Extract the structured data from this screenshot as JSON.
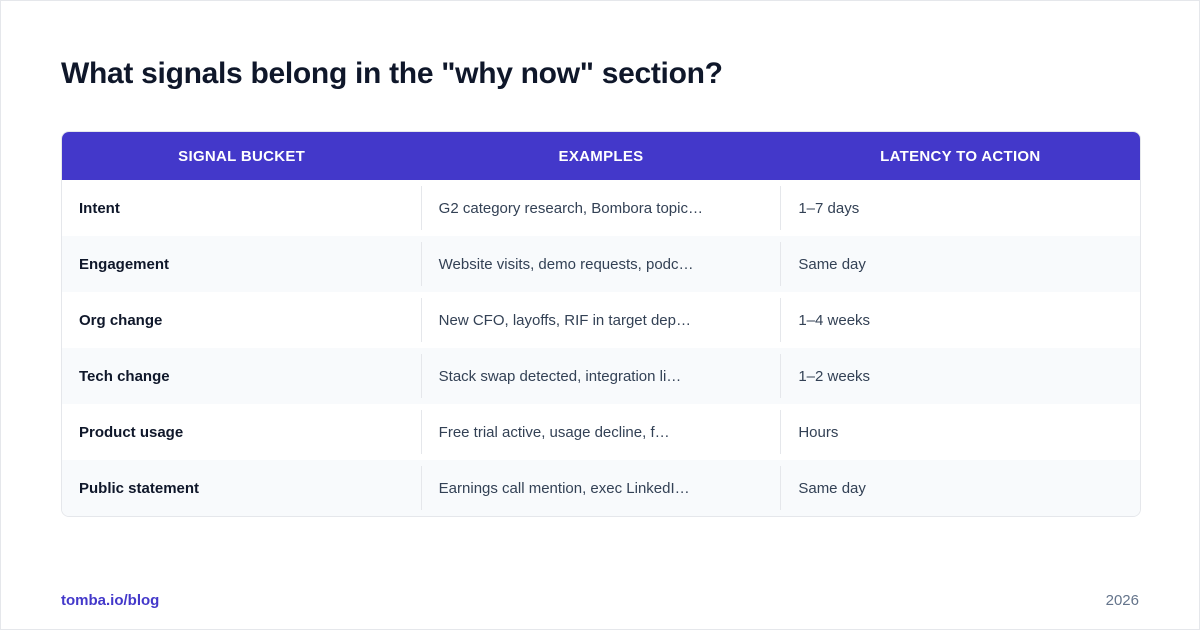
{
  "title": "What signals belong in the \"why now\" section?",
  "table": {
    "headers": [
      "SIGNAL BUCKET",
      "EXAMPLES",
      "LATENCY TO ACTION"
    ],
    "rows": [
      {
        "bucket": "Intent",
        "examples": "G2 category research, Bombora topic…",
        "latency": "1–7 days"
      },
      {
        "bucket": "Engagement",
        "examples": "Website visits, demo requests, podc…",
        "latency": "Same day"
      },
      {
        "bucket": "Org change",
        "examples": "New CFO, layoffs, RIF in target dep…",
        "latency": "1–4 weeks"
      },
      {
        "bucket": "Tech change",
        "examples": "Stack swap detected, integration li…",
        "latency": "1–2 weeks"
      },
      {
        "bucket": "Product usage",
        "examples": "Free trial active, usage decline, f…",
        "latency": "Hours"
      },
      {
        "bucket": "Public statement",
        "examples": "Earnings call mention, exec LinkedI…",
        "latency": "Same day"
      }
    ]
  },
  "footer": {
    "site": "tomba.io/blog",
    "year": "2026"
  },
  "colors": {
    "accent": "#4338ca",
    "title": "#0f172a",
    "row_alt": "#f8fafc"
  }
}
